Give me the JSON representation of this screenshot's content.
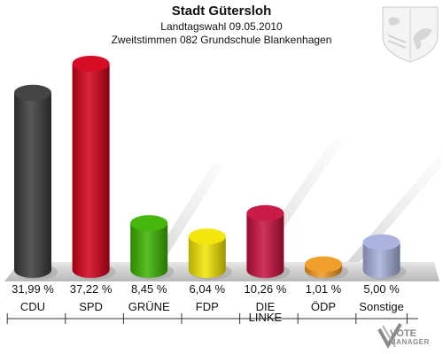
{
  "header": {
    "title": "Stadt Gütersloh",
    "subtitle1": "Landtagswahl 09.05.2010",
    "subtitle2": "Zweitstimmen 082 Grundschule Blankenhagen"
  },
  "watermark": {
    "line1": "VOTE",
    "line2": "MANAGER"
  },
  "chart_data": {
    "type": "bar",
    "title": "Stadt Gütersloh",
    "subtitle": "Zweitstimmen 082 Grundschule Blankenhagen",
    "xlabel": "",
    "ylabel": "",
    "ylim": [
      0,
      40
    ],
    "categories": [
      "CDU",
      "SPD",
      "GRÜNE",
      "FDP",
      "DIE LINKE",
      "ÖDP",
      "Sonstige"
    ],
    "values": [
      31.99,
      37.22,
      8.45,
      6.04,
      10.26,
      1.01,
      5.0
    ],
    "value_labels": [
      "31,99 %",
      "37,22 %",
      "8,45 %",
      "6,04 %",
      "10,26 %",
      "1,01 %",
      "5,00 %"
    ],
    "colors": [
      "#3a3a3a",
      "#d4001a",
      "#3cb400",
      "#f2e500",
      "#c8103e",
      "#f09a20",
      "#a6b0dc"
    ],
    "grid": false,
    "legend": "none"
  }
}
